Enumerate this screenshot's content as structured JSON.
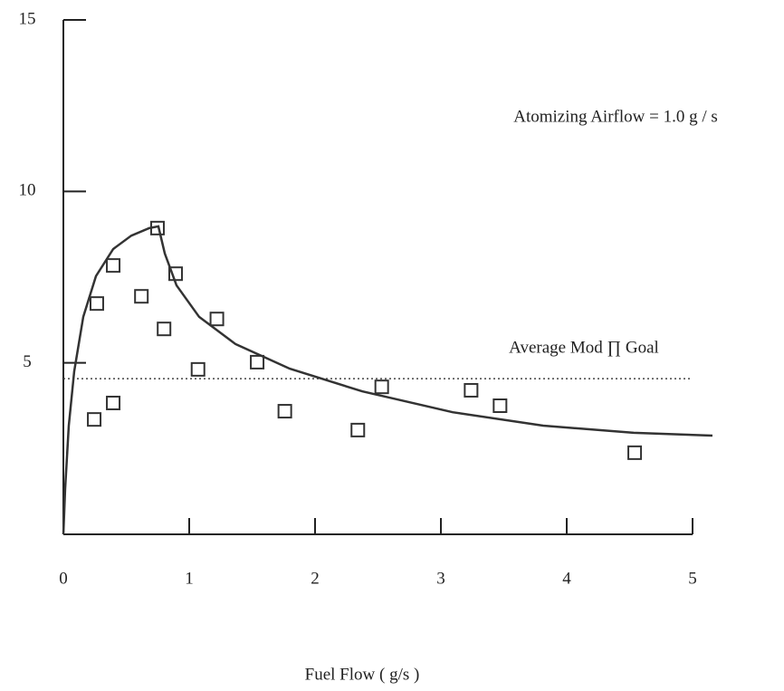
{
  "chart_data": {
    "type": "scatter",
    "x_label": "Fuel Flow ( g/s )",
    "annotation": "Atomizing Airflow = 1.0 g / s",
    "xlim": [
      0,
      5
    ],
    "ylim": [
      0,
      15
    ],
    "xticks": [
      0,
      1,
      2,
      3,
      4,
      5
    ],
    "yticks": [
      5,
      10,
      15
    ],
    "color": "#333333",
    "points": {
      "x": [
        0.245,
        0.266,
        0.396,
        0.396,
        0.62,
        0.748,
        0.8,
        0.892,
        1.07,
        1.22,
        1.54,
        1.76,
        2.34,
        2.53,
        3.24,
        3.47,
        4.54
      ],
      "y": [
        3.35,
        6.73,
        3.83,
        7.84,
        6.94,
        8.93,
        5.99,
        7.6,
        4.81,
        6.28,
        5.02,
        3.59,
        3.04,
        4.3,
        4.2,
        3.75,
        2.38
      ]
    },
    "curve": {
      "x": [
        0,
        0.014,
        0.043,
        0.086,
        0.158,
        0.259,
        0.396,
        0.54,
        0.683,
        0.755,
        0.806,
        0.899,
        1.079,
        1.367,
        1.799,
        2.374,
        3.094,
        3.813,
        4.532,
        5.158
      ],
      "y": [
        0,
        1.32,
        3.17,
        4.75,
        6.34,
        7.53,
        8.32,
        8.71,
        8.93,
        8.98,
        8.19,
        7.26,
        6.34,
        5.55,
        4.83,
        4.17,
        3.56,
        3.17,
        2.96,
        2.88
      ]
    },
    "reference_line": {
      "y": 4.54,
      "label": "Average Mod ∏ Goal"
    }
  }
}
